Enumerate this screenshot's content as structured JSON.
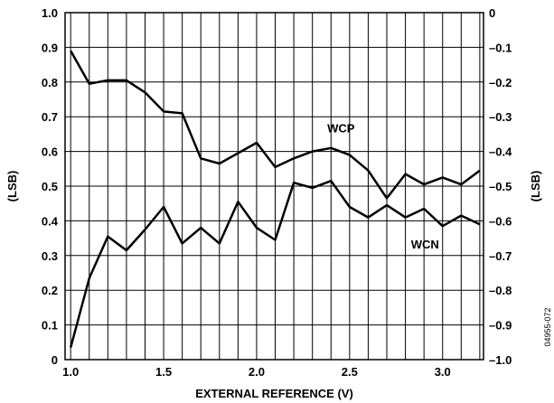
{
  "chart_data": {
    "type": "line",
    "xlabel": "EXTERNAL REFERENCE (V)",
    "ylabel": "(LSB)",
    "y2label": "(LSB)",
    "xlim": [
      0.97,
      3.22
    ],
    "ylim": [
      0,
      1.0
    ],
    "y2lim": [
      -1.0,
      0
    ],
    "grid": true,
    "x_ticks": [
      1.0,
      1.5,
      2.0,
      2.5,
      3.0
    ],
    "x_tick_labels": [
      "1.0",
      "1.5",
      "2.0",
      "2.5",
      "3.0"
    ],
    "x_minor_step": 0.1,
    "y_ticks": [
      0,
      0.1,
      0.2,
      0.3,
      0.4,
      0.5,
      0.6,
      0.7,
      0.8,
      0.9,
      1.0
    ],
    "y_tick_labels": [
      "0",
      "0.1",
      "0.2",
      "0.3",
      "0.4",
      "0.5",
      "0.6",
      "0.7",
      "0.8",
      "0.9",
      "1.0"
    ],
    "y2_ticks": [
      0,
      -0.1,
      -0.2,
      -0.3,
      -0.4,
      -0.5,
      -0.6,
      -0.7,
      -0.8,
      -0.9,
      -1.0
    ],
    "y2_tick_labels": [
      "0",
      "–0.1",
      "–0.2",
      "–0.3",
      "–0.4",
      "–0.5",
      "–0.6",
      "–0.7",
      "–0.8",
      "–0.9",
      "–1.0"
    ],
    "series": [
      {
        "name": "WCP",
        "axis": "left",
        "x": [
          1.0,
          1.1,
          1.2,
          1.3,
          1.4,
          1.5,
          1.6,
          1.7,
          1.8,
          1.9,
          2.0,
          2.1,
          2.2,
          2.3,
          2.4,
          2.5,
          2.6,
          2.7,
          2.8,
          2.9,
          3.0,
          3.1,
          3.2
        ],
        "values": [
          0.89,
          0.795,
          0.805,
          0.805,
          0.77,
          0.715,
          0.71,
          0.58,
          0.565,
          0.595,
          0.625,
          0.555,
          0.58,
          0.6,
          0.61,
          0.59,
          0.545,
          0.465,
          0.535,
          0.505,
          0.525,
          0.505,
          0.545
        ]
      },
      {
        "name": "WCN",
        "axis": "right",
        "x": [
          1.0,
          1.1,
          1.2,
          1.3,
          1.4,
          1.5,
          1.6,
          1.7,
          1.8,
          1.9,
          2.0,
          2.1,
          2.2,
          2.3,
          2.4,
          2.5,
          2.6,
          2.7,
          2.8,
          2.9,
          3.0,
          3.1,
          3.2
        ],
        "values": [
          -0.965,
          -0.765,
          -0.645,
          -0.685,
          -0.625,
          -0.56,
          -0.665,
          -0.62,
          -0.665,
          -0.545,
          -0.62,
          -0.655,
          -0.49,
          -0.505,
          -0.485,
          -0.56,
          -0.59,
          -0.555,
          -0.59,
          -0.565,
          -0.615,
          -0.585,
          -0.61
        ]
      }
    ],
    "annotations": [
      {
        "text": "WCP",
        "series": "WCP",
        "x": 2.38,
        "y": 0.655
      },
      {
        "text": "WCN",
        "series": "WCN",
        "x": 2.83,
        "y": -0.68
      }
    ],
    "figure_id": "04955-072"
  }
}
